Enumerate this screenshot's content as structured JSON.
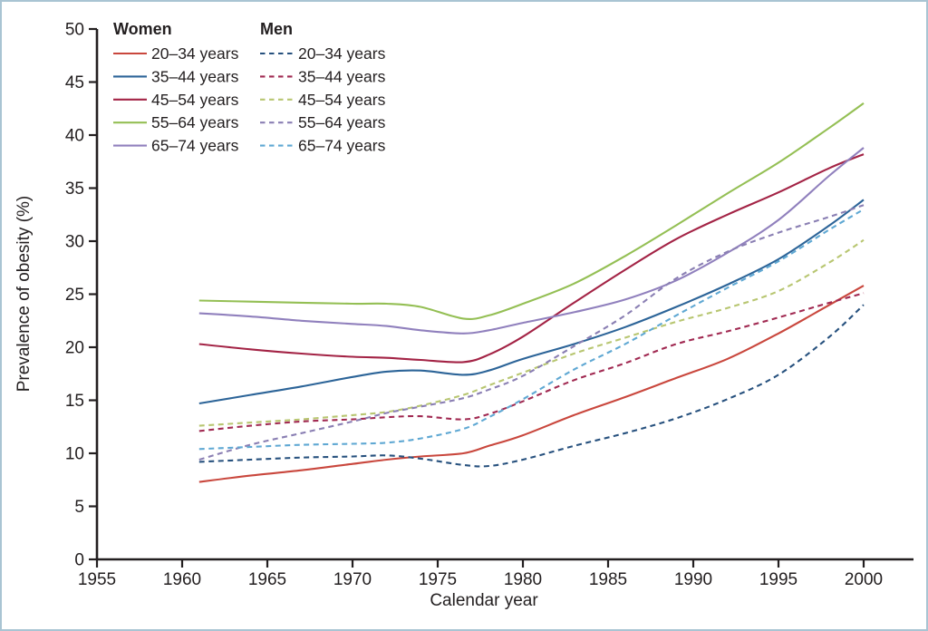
{
  "figure": {
    "border_color": "#a9c4d3",
    "background": "#ffffff",
    "text_color": "#231f20"
  },
  "chart_data": {
    "type": "line",
    "title": "",
    "xlabel": "Calendar year",
    "ylabel": "Prevalence of obesity (%)",
    "xlim": [
      1955,
      2003
    ],
    "ylim": [
      0,
      50
    ],
    "grid": false,
    "legend_position": "top-left, two columns",
    "x_ticks": [
      "1955",
      "1960",
      "1965",
      "1970",
      "1975",
      "1980",
      "1985",
      "1990",
      "1995",
      "2000"
    ],
    "y_ticks": [
      "0",
      "5",
      "10",
      "15",
      "20",
      "25",
      "30",
      "35",
      "40",
      "45",
      "50"
    ],
    "x": [
      1961,
      1964,
      1967,
      1970,
      1972,
      1974,
      1976.5,
      1978,
      1980,
      1983,
      1986,
      1989,
      1992,
      1995,
      1998,
      2000
    ],
    "legend_groups": [
      {
        "id": "women",
        "label": "Women"
      },
      {
        "id": "men",
        "label": "Men"
      }
    ],
    "series": [
      {
        "id": "women-20-34",
        "group": "women",
        "label": "20–34 years",
        "color": "#c9473d",
        "dashed": false,
        "values": [
          7.3,
          7.9,
          8.4,
          9.0,
          9.4,
          9.7,
          10.0,
          10.7,
          11.7,
          13.6,
          15.3,
          17.1,
          18.9,
          21.3,
          24.0,
          25.8
        ]
      },
      {
        "id": "women-35-44",
        "group": "women",
        "label": "35–44 years",
        "color": "#2c6498",
        "dashed": false,
        "values": [
          14.7,
          15.5,
          16.3,
          17.2,
          17.7,
          17.8,
          17.4,
          17.8,
          18.9,
          20.3,
          21.9,
          23.8,
          25.9,
          28.3,
          31.5,
          33.9
        ]
      },
      {
        "id": "women-45-54",
        "group": "women",
        "label": "45–54 years",
        "color": "#a32345",
        "dashed": false,
        "values": [
          20.3,
          19.8,
          19.4,
          19.1,
          19.0,
          18.8,
          18.6,
          19.3,
          21.0,
          24.2,
          27.3,
          30.2,
          32.5,
          34.6,
          36.9,
          38.2
        ]
      },
      {
        "id": "women-55-64",
        "group": "women",
        "label": "55–64 years",
        "color": "#94bf54",
        "dashed": false,
        "values": [
          24.4,
          24.3,
          24.2,
          24.1,
          24.1,
          23.8,
          22.7,
          23.0,
          24.1,
          26.0,
          28.6,
          31.5,
          34.5,
          37.4,
          40.7,
          43.0
        ]
      },
      {
        "id": "women-65-74",
        "group": "women",
        "label": "65–74 years",
        "color": "#9080bd",
        "dashed": false,
        "values": [
          23.2,
          22.9,
          22.5,
          22.2,
          22.0,
          21.6,
          21.3,
          21.6,
          22.3,
          23.3,
          24.5,
          26.3,
          28.9,
          32.0,
          36.2,
          38.8
        ]
      },
      {
        "id": "men-20-34",
        "group": "men",
        "label": "20–34 years",
        "color": "#27517e",
        "dashed": true,
        "values": [
          9.2,
          9.4,
          9.6,
          9.7,
          9.8,
          9.5,
          8.9,
          8.8,
          9.4,
          10.7,
          11.9,
          13.3,
          15.1,
          17.4,
          21.0,
          24.0
        ]
      },
      {
        "id": "men-35-44",
        "group": "men",
        "label": "35–44 years",
        "color": "#a12a52",
        "dashed": true,
        "values": [
          12.1,
          12.6,
          13.0,
          13.2,
          13.4,
          13.5,
          13.2,
          13.7,
          14.9,
          16.9,
          18.5,
          20.3,
          21.5,
          22.8,
          24.2,
          25.1
        ]
      },
      {
        "id": "men-45-54",
        "group": "men",
        "label": "45–54 years",
        "color": "#b8c671",
        "dashed": true,
        "values": [
          12.6,
          12.9,
          13.2,
          13.6,
          13.9,
          14.5,
          15.5,
          16.4,
          17.6,
          19.4,
          20.9,
          22.4,
          23.7,
          25.3,
          28.0,
          30.1
        ]
      },
      {
        "id": "men-55-64",
        "group": "men",
        "label": "55–64 years",
        "color": "#8a7fb3",
        "dashed": true,
        "values": [
          9.4,
          10.8,
          11.9,
          13.0,
          13.8,
          14.4,
          15.2,
          16.0,
          17.3,
          20.1,
          23.0,
          26.5,
          29.0,
          30.8,
          32.3,
          33.4
        ]
      },
      {
        "id": "men-65-74",
        "group": "men",
        "label": "65–74 years",
        "color": "#5fa8d3",
        "dashed": true,
        "values": [
          10.4,
          10.6,
          10.8,
          10.9,
          11.0,
          11.4,
          12.3,
          13.4,
          15.1,
          17.9,
          20.3,
          23.0,
          25.6,
          28.1,
          31.1,
          33.0
        ]
      }
    ]
  }
}
